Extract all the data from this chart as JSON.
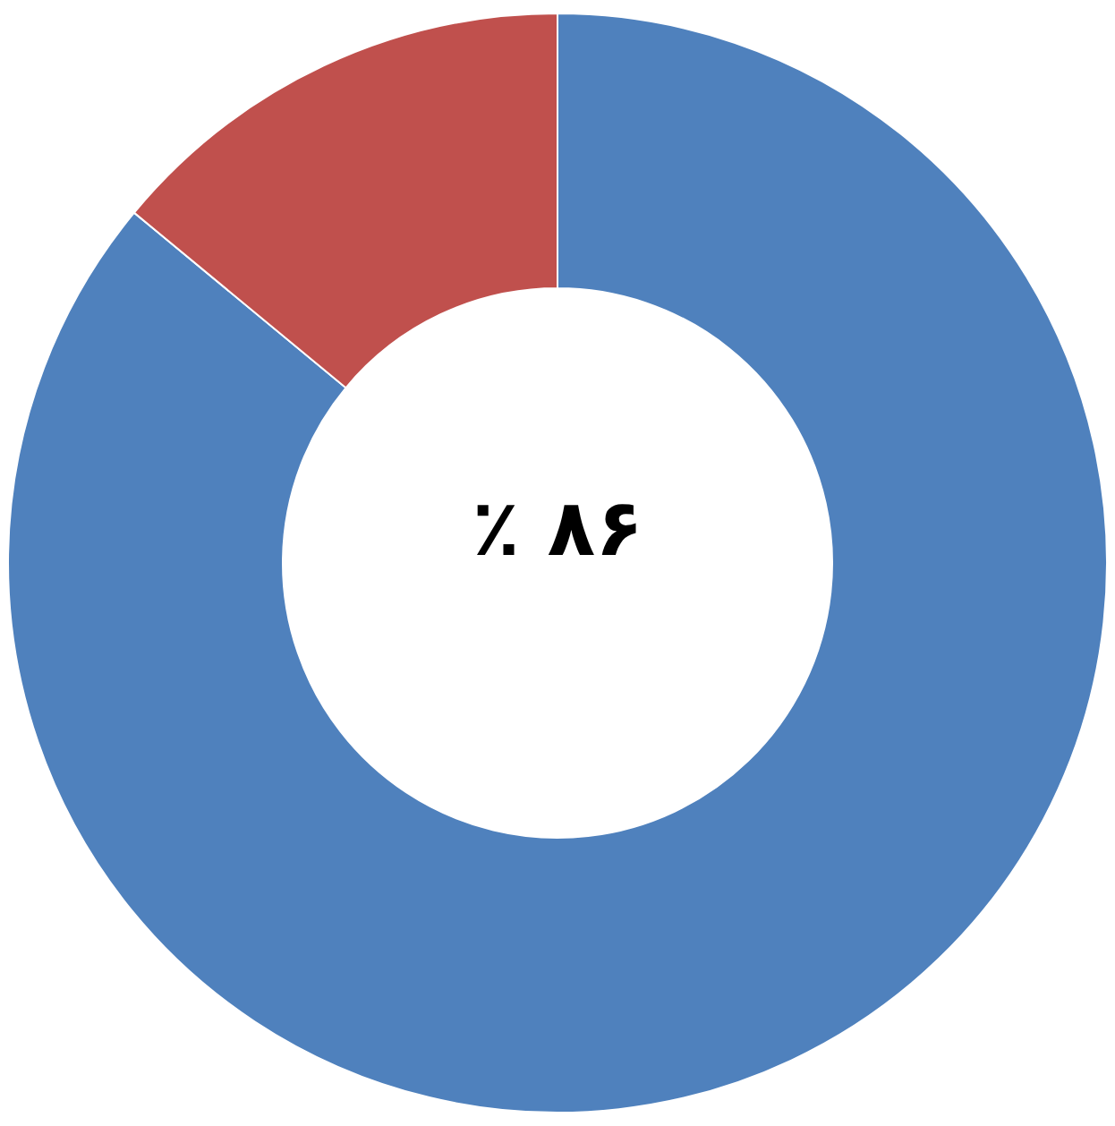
{
  "chart_data": {
    "type": "donut",
    "categories": [
      null,
      null
    ],
    "values": [
      86,
      14
    ],
    "colors": [
      "#4f81bd",
      "#c0504d"
    ],
    "annotations": [
      "٪ ۸۶"
    ]
  }
}
